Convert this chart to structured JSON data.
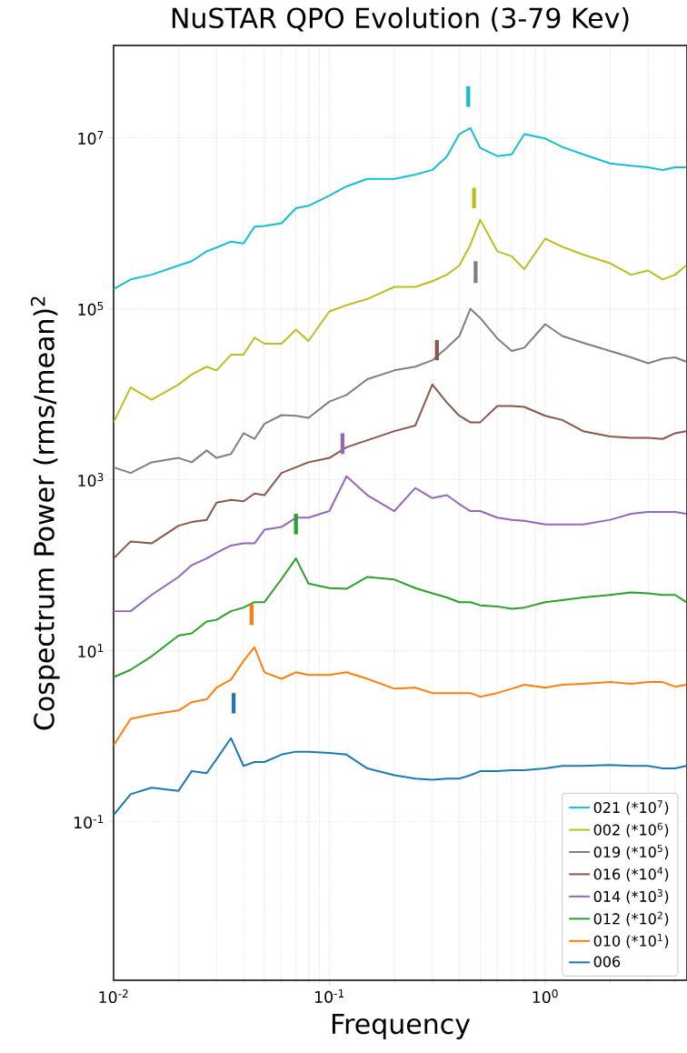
{
  "chart_data": {
    "type": "line",
    "title": "NuSTAR QPO Evolution (3-79 Kev)",
    "xlabel": "Frequency",
    "ylabel": "Cospectrum Power (rms/mean)$^{2}$",
    "log": "xy",
    "grid": true,
    "legend": "bottom right",
    "xlim": [
      0.01,
      4.54
    ],
    "ylim": [
      0.0014,
      120000000.0
    ],
    "xticks": [
      {
        "value": 0.01,
        "label": "10$^{-2}$"
      },
      {
        "value": 0.1,
        "label": "10$^{-1}$"
      },
      {
        "value": 1,
        "label": "10$^{0}$"
      }
    ],
    "yticks": [
      {
        "value": 0.1,
        "label": "10$^{-1}$"
      },
      {
        "value": 10,
        "label": "10$^{1}$"
      },
      {
        "value": 1000,
        "label": "10$^{3}$"
      },
      {
        "value": 100000,
        "label": "10$^{5}$"
      },
      {
        "value": 10000000,
        "label": "10$^{7}$"
      }
    ],
    "x": [
      0.01,
      0.012,
      0.015,
      0.02,
      0.023,
      0.027,
      0.03,
      0.035,
      0.04,
      0.045,
      0.05,
      0.06,
      0.07,
      0.08,
      0.1,
      0.12,
      0.15,
      0.2,
      0.25,
      0.3,
      0.35,
      0.4,
      0.45,
      0.5,
      0.6,
      0.7,
      0.8,
      1.0,
      1.2,
      1.5,
      2,
      2.5,
      3,
      3.5,
      4,
      4.5
    ],
    "series": [
      {
        "name": "021 (*10$^{7}$)",
        "color": "#17becf",
        "values": [
          170000.0,
          220000.0,
          250000.0,
          320000.0,
          360000.0,
          470000.0,
          520000.0,
          610000.0,
          580000.0,
          910000.0,
          930000.0,
          1000000.0,
          1500000.0,
          1600000.0,
          2100000.0,
          2700000.0,
          3300000.0,
          3300000.0,
          3700000.0,
          4200000.0,
          6000000.0,
          11000000.0,
          13000000.0,
          7600000.0,
          6100000.0,
          6400000.0,
          11000000.0,
          9800000.0,
          7800000.0,
          6400000.0,
          5000000.0,
          4700000.0,
          4500000.0,
          4200000.0,
          4500000.0,
          4500000.0
        ]
      },
      {
        "name": "002 (*10$^{6}$)",
        "color": "#bcbd22",
        "values": [
          4700.0,
          12000.0,
          8600.0,
          13000.0,
          17000.0,
          21000.0,
          19000.0,
          29000.0,
          29000.0,
          46000.0,
          39000.0,
          39000.0,
          57000.0,
          42000.0,
          93000.0,
          110000.0,
          130000.0,
          180000.0,
          180000.0,
          210000.0,
          250000.0,
          320000.0,
          560000.0,
          1100000.0,
          470000.0,
          410000.0,
          290000.0,
          660000.0,
          530000.0,
          430000.0,
          340000.0,
          250000.0,
          280000.0,
          220000.0,
          250000.0,
          320000.0
        ]
      },
      {
        "name": "019 (*10$^{5}$)",
        "color": "#7f7f7f",
        "values": [
          1400.0,
          1200.0,
          1600.0,
          1800.0,
          1600.0,
          2200.0,
          1800.0,
          2000.0,
          3500.0,
          3000.0,
          4500.0,
          5700.0,
          5600.0,
          5300.0,
          8200.0,
          9800.0,
          15000.0,
          19000.0,
          21000.0,
          25000.0,
          35000.0,
          48000.0,
          100000.0,
          78000.0,
          45000.0,
          32000.0,
          35000.0,
          66000.0,
          48000.0,
          40000.0,
          32000.0,
          27000.0,
          23000.0,
          26000.0,
          27000.0,
          24000.0
        ]
      },
      {
        "name": "016 (*10$^{4}$)",
        "color": "#8c564b",
        "values": [
          120,
          190,
          180,
          290,
          320,
          340,
          540,
          580,
          560,
          690,
          660,
          1200.0,
          1400.0,
          1600.0,
          1800.0,
          2400.0,
          2900.0,
          3700.0,
          4300.0,
          13000.0,
          8000.0,
          5600.0,
          4700.0,
          4700.0,
          7300.0,
          7300.0,
          7100.0,
          5600.0,
          5000.0,
          3700.0,
          3200.0,
          3100.0,
          3100.0,
          3000.0,
          3500.0,
          3700.0
        ]
      },
      {
        "name": "014 (*10$^{3}$)",
        "color": "#9467bd",
        "values": [
          29,
          29,
          45,
          73,
          100,
          120,
          140,
          170,
          180,
          180,
          260,
          280,
          360,
          360,
          430,
          1100.0,
          660,
          430,
          800,
          610,
          660,
          520,
          430,
          430,
          360,
          340,
          330,
          300,
          300,
          300,
          340,
          400,
          420,
          420,
          420,
          400
        ]
      },
      {
        "name": "012 (*10$^{2}$)",
        "color": "#2ca02c",
        "values": [
          4.9,
          6.0,
          8.6,
          15,
          16,
          22,
          23,
          29,
          32,
          37,
          37,
          69,
          120,
          61,
          54,
          53,
          73,
          68,
          54,
          47,
          42,
          37,
          37,
          34,
          33,
          31,
          32,
          37,
          39,
          42,
          45,
          48,
          47,
          45,
          45,
          37
        ]
      },
      {
        "name": "010 (*10$^{1}$)",
        "color": "#ff7f0e",
        "values": [
          0.78,
          1.6,
          1.8,
          2.0,
          2.5,
          2.7,
          3.7,
          4.6,
          7.6,
          11,
          5.6,
          4.7,
          5.6,
          5.2,
          5.2,
          5.6,
          4.7,
          3.6,
          3.7,
          3.2,
          3.2,
          3.2,
          3.2,
          2.9,
          3.2,
          3.6,
          4.0,
          3.7,
          4.0,
          4.1,
          4.3,
          4.1,
          4.3,
          4.3,
          3.8,
          4.0
        ]
      },
      {
        "name": "006",
        "color": "#1f77b4",
        "values": [
          0.12,
          0.21,
          0.25,
          0.23,
          0.39,
          0.37,
          0.54,
          0.95,
          0.45,
          0.5,
          0.5,
          0.61,
          0.66,
          0.66,
          0.64,
          0.61,
          0.42,
          0.35,
          0.32,
          0.31,
          0.32,
          0.32,
          0.35,
          0.39,
          0.39,
          0.4,
          0.4,
          0.42,
          0.45,
          0.45,
          0.46,
          0.45,
          0.45,
          0.42,
          0.42,
          0.45
        ]
      },
      {
        "type": "bar",
        "x": [
          0.036,
          0.0436,
          0.07,
          0.115,
          0.315,
          0.44,
          0.468,
          0.476
        ],
        "base": [
          1.85,
          20,
          230,
          2000.0,
          25000.0,
          23000000.0,
          1500000.0,
          200000.0
        ],
        "values": [
          1.35,
          15,
          170,
          1500.0,
          18000.0,
          17000000.0,
          1100000.0,
          160000.0
        ],
        "colors": [
          "#1f77b4",
          "#ff7f0e",
          "#2ca02c",
          "#9467bd",
          "#8c564b",
          "#17becf",
          "#bcbd22",
          "#7f7f7f"
        ]
      }
    ]
  }
}
